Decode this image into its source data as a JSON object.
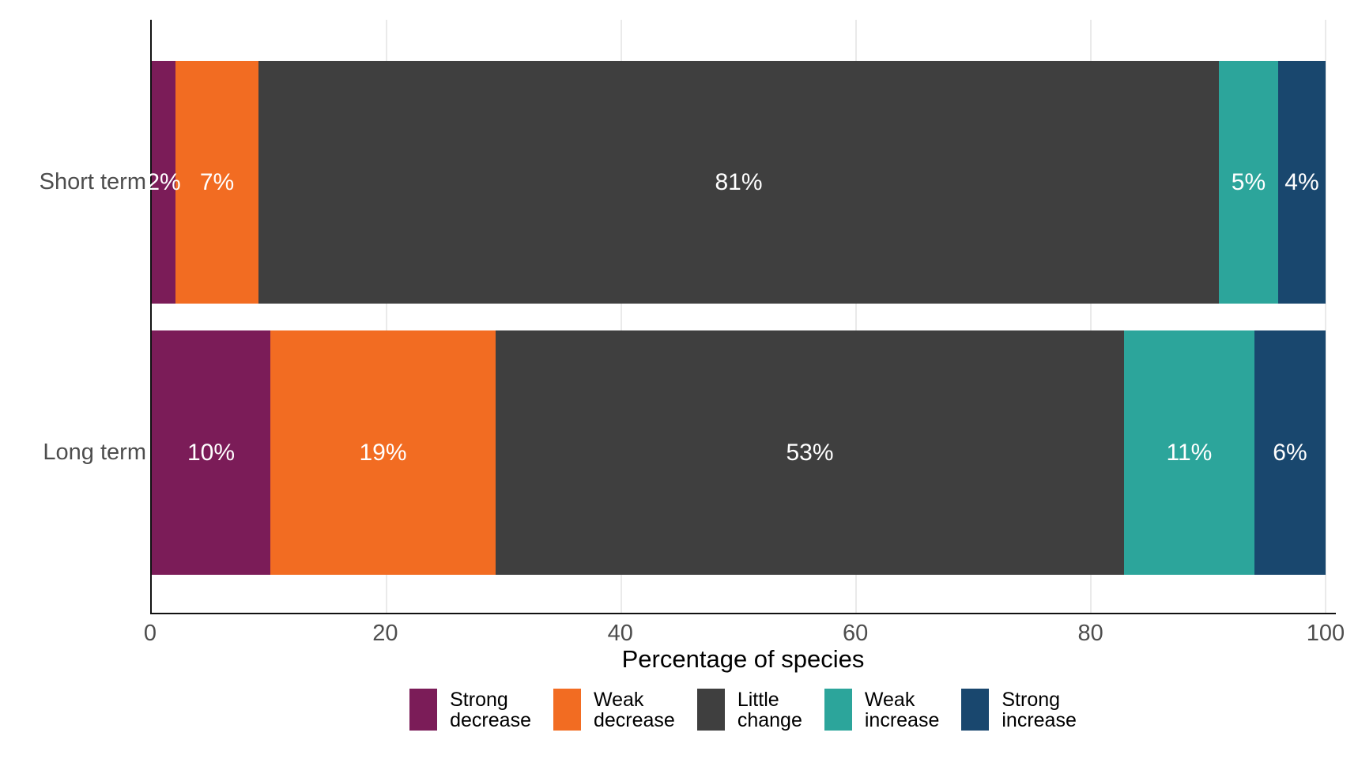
{
  "chart_data": {
    "type": "bar",
    "orientation": "horizontal-stacked",
    "title": "",
    "xlabel": "Percentage of species",
    "ylabel": "",
    "categories": [
      "Short term",
      "Long term"
    ],
    "series": [
      {
        "name": "Strong decrease",
        "color": "#7B1C58",
        "values": [
          2,
          10
        ]
      },
      {
        "name": "Weak decrease",
        "color": "#F26C22",
        "values": [
          7,
          19
        ]
      },
      {
        "name": "Little change",
        "color": "#3F3F3F",
        "values": [
          81,
          53
        ]
      },
      {
        "name": "Weak increase",
        "color": "#2CA59B",
        "values": [
          5,
          11
        ]
      },
      {
        "name": "Strong increase",
        "color": "#19476E",
        "values": [
          4,
          6
        ]
      }
    ],
    "value_labels": {
      "Short term": [
        "2%",
        "7%",
        "81%",
        "5%",
        "4%"
      ],
      "Long term": [
        "10%",
        "19%",
        "53%",
        "11%",
        "6%"
      ]
    },
    "value_label_suffix": "%",
    "x_ticks": [
      0,
      20,
      40,
      60,
      80,
      100
    ],
    "xlim": [
      0,
      100
    ],
    "grid": "vertical-major-only",
    "legend_position": "bottom"
  },
  "colors": {
    "background": "#FFFFFF",
    "axis_line": "#111111",
    "grid_line": "#EAEAEA",
    "tick_label": "#4D4D4D",
    "category_label": "#4D4D4D",
    "axis_title": "#000000",
    "value_label": "#FFFFFF"
  }
}
